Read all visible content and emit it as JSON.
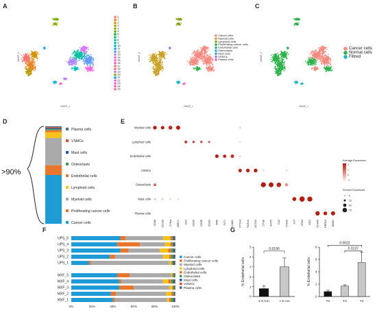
{
  "panel_labels": {
    "a": "A",
    "b": "B",
    "c": "C",
    "d": "D",
    "e": "E",
    "f": "F",
    "g": "G"
  },
  "colors": {
    "cancer": "#1f9bd6",
    "prolif": "#e8762d",
    "myeloid": "#aaaaaa",
    "lymphoid": "#f6c31c",
    "endothelial": "#e8762d",
    "osteoclasts": "#3aa14b",
    "mast": "#2357a8",
    "vsmc": "#d94f2b",
    "plasma": "#4a6b8a",
    "normal": "#2db34a",
    "filtred": "#1fb5c8",
    "cancer_c": "#f48a80",
    "dot": "#b21e12"
  },
  "panel_a": {
    "axis_x": "UMAP_1",
    "axis_y": "UMAP_2",
    "legend": [
      "0",
      "1",
      "2",
      "3",
      "4",
      "5",
      "6",
      "7",
      "8",
      "9",
      "10",
      "11",
      "12",
      "13",
      "14",
      "15",
      "16",
      "17",
      "18",
      "19",
      "20",
      "21",
      "22",
      "23",
      "24",
      "25"
    ],
    "legend_colors": [
      "#f8766d",
      "#e88526",
      "#d39200",
      "#b79f00",
      "#93aa00",
      "#5eb300",
      "#00ba38",
      "#00bf74",
      "#00c19f",
      "#00bfc4",
      "#00b9e3",
      "#00adfa",
      "#619cff",
      "#ae87ff",
      "#db72fb",
      "#f564e3",
      "#ff61c3",
      "#ff6c91",
      "#f8766d",
      "#c77cff",
      "#7cae00",
      "#00a9ff",
      "#e76bf3",
      "#fd61d1",
      "#ff62bc",
      "#ff6a98"
    ]
  },
  "panel_b": {
    "axis_x": "UMAP_1",
    "axis_y": "UMAP_2",
    "legend": [
      "Cancer cells",
      "Myeloid cells",
      "Lymphoid cells",
      "Proliferating cancer cells",
      "Endothelial cells",
      "Osteoclasts",
      "Mast cells",
      "VSMCs",
      "Plasma cells"
    ],
    "legend_colors": [
      "#f48a80",
      "#c9a227",
      "#8aa51b",
      "#2db34a",
      "#20b38a",
      "#1fb5c8",
      "#3aa0e8",
      "#9b78e8",
      "#e868c8"
    ]
  },
  "panel_c": {
    "axis_x": "UMAP_1",
    "axis_y": "UMAP_2",
    "legend": [
      "Cancer cells",
      "Normal cells",
      "Filtred"
    ],
    "legend_colors": [
      "#f48a80",
      "#2db34a",
      "#1fb5c8"
    ]
  },
  "panel_d": {
    "bracket_label": ">90%",
    "legend": [
      "Plasma cells",
      "VSMCs",
      "Mast cells",
      "Osteoclasts",
      "Endothelial cells",
      "Lymphoid cells",
      "Myeloid cells",
      "Proliferating cancer cells",
      "Cancer cells"
    ],
    "legend_colors": [
      "#4a6b8a",
      "#d94f2b",
      "#2357a8",
      "#3aa14b",
      "#e8762d",
      "#f6c31c",
      "#aaaaaa",
      "#e8762d",
      "#1f9bd6"
    ],
    "stack_fractions": [
      0.01,
      0.01,
      0.01,
      0.01,
      0.02,
      0.06,
      0.28,
      0.1,
      0.5
    ]
  },
  "chart_data": [
    {
      "type": "scatter",
      "panel": "E",
      "xlabel": "Features",
      "y_categories": [
        "Myeloid cells",
        "Lymphoid cells",
        "Endothelial cells",
        "VSMCs",
        "Osteoclasts",
        "Mast cells",
        "Plasma cells"
      ],
      "x_categories": [
        "CD68",
        "CD163",
        "CYBA",
        "MRC1",
        "CD2",
        "CD3D",
        "CD3E",
        "CD3G",
        "VWF",
        "FLT1",
        "PECAM1",
        "NOTCH3",
        "TAGLN",
        "ACTA2",
        "CTSK",
        "ACP5",
        "CA2",
        "ITGAV",
        "KIT",
        "CPA3",
        "HDC",
        "JCHAIN",
        "DERL3",
        "MZB1"
      ],
      "legend_expression_title": "Average Expression",
      "legend_expression_ticks": [
        "2",
        "1",
        "0",
        "-1"
      ],
      "legend_percent_title": "Percent Expressed",
      "legend_percent_ticks": [
        "0",
        "25",
        "50",
        "75"
      ],
      "dots": [
        [
          0,
          0,
          1.0,
          0.6
        ],
        [
          1,
          0,
          1.0,
          0.55
        ],
        [
          2,
          0,
          0.9,
          0.65
        ],
        [
          3,
          0,
          1.0,
          0.7
        ],
        [
          11,
          0,
          0.1,
          0.25
        ],
        [
          4,
          1,
          0.85,
          0.4
        ],
        [
          5,
          1,
          0.8,
          0.3
        ],
        [
          6,
          1,
          0.75,
          0.3
        ],
        [
          7,
          1,
          0.7,
          0.25
        ],
        [
          11,
          1,
          0.1,
          0.15
        ],
        [
          8,
          2,
          1.0,
          0.55
        ],
        [
          9,
          2,
          0.95,
          0.5
        ],
        [
          10,
          2,
          0.9,
          0.55
        ],
        [
          11,
          2,
          0.1,
          0.2
        ],
        [
          11,
          3,
          0.95,
          0.55
        ],
        [
          12,
          3,
          0.95,
          0.6
        ],
        [
          13,
          3,
          1.0,
          0.6
        ],
        [
          14,
          3,
          0.1,
          0.2
        ],
        [
          17,
          3,
          0.1,
          0.2
        ],
        [
          0,
          4,
          0.7,
          0.35
        ],
        [
          14,
          4,
          1.0,
          0.9
        ],
        [
          15,
          4,
          1.0,
          0.85
        ],
        [
          16,
          4,
          0.95,
          0.8
        ],
        [
          17,
          4,
          0.4,
          0.5
        ],
        [
          0,
          5,
          0.2,
          0.25
        ],
        [
          1,
          5,
          0.15,
          0.25
        ],
        [
          2,
          5,
          0.1,
          0.2
        ],
        [
          3,
          5,
          0.1,
          0.2
        ],
        [
          18,
          5,
          1.0,
          0.65
        ],
        [
          19,
          5,
          1.0,
          0.95
        ],
        [
          20,
          5,
          1.0,
          0.9
        ],
        [
          21,
          6,
          1.0,
          0.75
        ],
        [
          22,
          6,
          1.0,
          0.6
        ],
        [
          23,
          6,
          1.0,
          0.7
        ]
      ]
    },
    {
      "type": "bar",
      "panel": "F",
      "stacked": true,
      "orientation": "horizontal",
      "categories": [
        "UPS_5",
        "UPS_4",
        "UPS_3",
        "UPS_2",
        "UPS_1",
        "MXF_5",
        "MXF_4",
        "MXF_3",
        "MXF_2",
        "MXF_1"
      ],
      "x_ticks": [
        "0%",
        "20%",
        "40%",
        "60%",
        "80%",
        "100%"
      ],
      "series": [
        {
          "name": "Cancer cells",
          "values": [
            47,
            44,
            47,
            37,
            17,
            44,
            46,
            46,
            38,
            40
          ]
        },
        {
          "name": "Proliferating cancer cells",
          "values": [
            5,
            22,
            8,
            5,
            2,
            12,
            2,
            14,
            5,
            2
          ]
        },
        {
          "name": "Myeloid cells",
          "values": [
            36,
            24,
            30,
            46,
            75,
            40,
            40,
            34,
            48,
            50
          ]
        },
        {
          "name": "Lymphoid cells",
          "values": [
            7,
            5,
            8,
            6,
            2,
            1,
            5,
            3,
            5,
            2
          ]
        },
        {
          "name": "Endothelial cells",
          "values": [
            2,
            2,
            3,
            2,
            1,
            1,
            3,
            1,
            2,
            2
          ]
        },
        {
          "name": "Osteoclasts",
          "values": [
            1,
            1,
            2,
            2,
            1,
            1,
            2,
            1,
            1,
            2
          ]
        },
        {
          "name": "Mast cells",
          "values": [
            1,
            1,
            1,
            1,
            1,
            0.5,
            1,
            0.5,
            0.5,
            1
          ]
        },
        {
          "name": "VSMCs",
          "values": [
            0.5,
            0.5,
            0.5,
            0.5,
            0.5,
            0.25,
            0.5,
            0.25,
            0.25,
            0.5
          ]
        },
        {
          "name": "Plasma cells",
          "values": [
            0.5,
            0.5,
            0.5,
            0.5,
            0.5,
            0.25,
            0.5,
            0.25,
            0.25,
            0.5
          ]
        }
      ]
    },
    {
      "type": "bar",
      "panel": "G1",
      "categories": [
        "≤ 5 Cm",
        "> 5 Cm"
      ],
      "values": [
        0.8,
        3.0
      ],
      "errors": [
        0.3,
        0.9
      ],
      "ylabel": "% Endothelial cells",
      "ylim": [
        0,
        5
      ],
      "y_ticks": [
        "0",
        "1",
        "2",
        "3",
        "4",
        "5"
      ],
      "pvalue": "0.0190"
    },
    {
      "type": "bar",
      "panel": "G2",
      "categories": [
        "T2",
        "T3",
        "T4"
      ],
      "values": [
        0.8,
        1.7,
        5.5
      ],
      "errors": [
        0.2,
        0.2,
        1.7
      ],
      "ylabel": "% Endothelial cells",
      "ylim": [
        0,
        8
      ],
      "y_ticks": [
        "0",
        "2",
        "4",
        "6",
        "8"
      ],
      "pvalues": [
        "0.0022",
        "0.0137"
      ]
    }
  ]
}
